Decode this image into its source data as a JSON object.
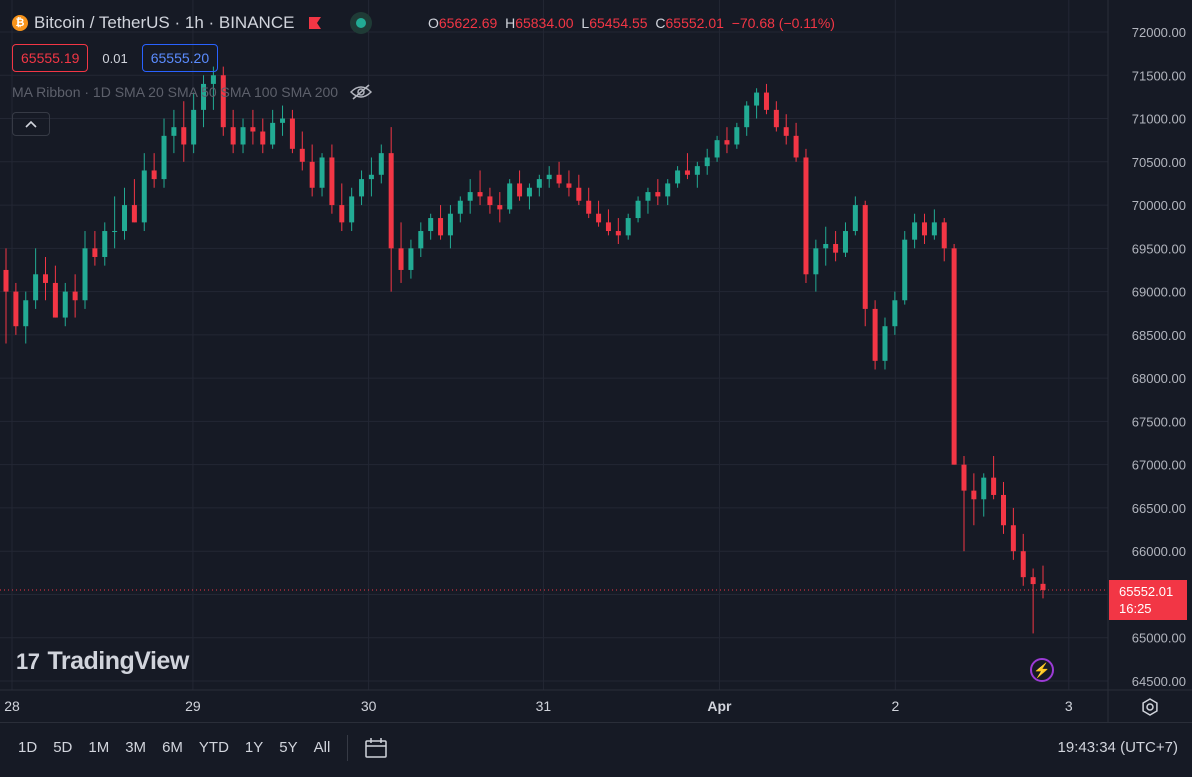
{
  "header": {
    "coin_icon_letter": "₿",
    "title": "Bitcoin / TetherUS · 1h · BINANCE",
    "ohlc": {
      "o_label": "O",
      "o": "65622.69",
      "h_label": "H",
      "h": "65834.00",
      "l_label": "L",
      "l": "65454.55",
      "c_label": "C",
      "c": "65552.01",
      "change": "−70.68 (−0.11%)"
    },
    "bid": "65555.19",
    "spread": "0.01",
    "ask": "65555.20",
    "indicator": "MA Ribbon · 1D SMA 20 SMA 50 SMA 100 SMA 200"
  },
  "last_price": {
    "price": "65552.01",
    "countdown": "16:25"
  },
  "logo": {
    "mark": "17",
    "text": "TradingView"
  },
  "toolbar": {
    "ranges": [
      "1D",
      "5D",
      "1M",
      "3M",
      "6M",
      "YTD",
      "1Y",
      "5Y",
      "All"
    ],
    "clock": "19:43:34 (UTC+7)"
  },
  "colors": {
    "up": "#22ab94",
    "down": "#f23645",
    "grid": "#232734",
    "axis_text": "#b2b5be",
    "background": "#161a25"
  },
  "icons": [
    "bitcoin-icon",
    "flag-icon",
    "market-status-icon",
    "eye-off-icon",
    "chevron-up-icon",
    "bolt-icon",
    "settings-icon",
    "calendar-icon"
  ],
  "chart_data": {
    "type": "candlestick",
    "ylim": [
      64500,
      72000
    ],
    "y_ticks": [
      "72000.00",
      "71500.00",
      "71000.00",
      "70500.00",
      "70000.00",
      "69500.00",
      "69000.00",
      "68500.00",
      "68000.00",
      "67500.00",
      "67000.00",
      "66500.00",
      "66000.00",
      "65500.00",
      "65000.00",
      "64500.00"
    ],
    "x_ticks": [
      "28",
      "29",
      "30",
      "31",
      "Apr",
      "2",
      "3"
    ],
    "last_price_line": 65552.01,
    "candles": [
      [
        69250,
        69500,
        68400,
        69000
      ],
      [
        69000,
        69100,
        68500,
        68600
      ],
      [
        68600,
        69000,
        68400,
        68900
      ],
      [
        68900,
        69500,
        68800,
        69200
      ],
      [
        69200,
        69400,
        68900,
        69100
      ],
      [
        69100,
        69300,
        68700,
        68700
      ],
      [
        68700,
        69100,
        68600,
        69000
      ],
      [
        69000,
        69200,
        68700,
        68900
      ],
      [
        68900,
        69700,
        68800,
        69500
      ],
      [
        69500,
        69700,
        69300,
        69400
      ],
      [
        69400,
        69800,
        69300,
        69700
      ],
      [
        69700,
        70100,
        69500,
        69700
      ],
      [
        69700,
        70200,
        69600,
        70000
      ],
      [
        70000,
        70300,
        69800,
        69800
      ],
      [
        69800,
        70600,
        69700,
        70400
      ],
      [
        70400,
        70600,
        70200,
        70300
      ],
      [
        70300,
        71000,
        70200,
        70800
      ],
      [
        70800,
        71100,
        70600,
        70900
      ],
      [
        70900,
        71200,
        70500,
        70700
      ],
      [
        70700,
        71300,
        70600,
        71100
      ],
      [
        71100,
        71500,
        70900,
        71400
      ],
      [
        71400,
        71600,
        71100,
        71500
      ],
      [
        71500,
        71600,
        70800,
        70900
      ],
      [
        70900,
        71100,
        70600,
        70700
      ],
      [
        70700,
        71000,
        70600,
        70900
      ],
      [
        70900,
        71100,
        70700,
        70850
      ],
      [
        70850,
        71000,
        70600,
        70700
      ],
      [
        70700,
        71100,
        70650,
        70950
      ],
      [
        70950,
        71150,
        70800,
        71000
      ],
      [
        71000,
        71100,
        70600,
        70650
      ],
      [
        70650,
        70850,
        70400,
        70500
      ],
      [
        70500,
        70700,
        70100,
        70200
      ],
      [
        70200,
        70600,
        70100,
        70550
      ],
      [
        70550,
        70700,
        69900,
        70000
      ],
      [
        70000,
        70250,
        69700,
        69800
      ],
      [
        69800,
        70200,
        69700,
        70100
      ],
      [
        70100,
        70400,
        70000,
        70300
      ],
      [
        70300,
        70550,
        70100,
        70350
      ],
      [
        70350,
        70700,
        70250,
        70600
      ],
      [
        70600,
        70900,
        69000,
        69500
      ],
      [
        69500,
        69800,
        69100,
        69250
      ],
      [
        69250,
        69600,
        69150,
        69500
      ],
      [
        69500,
        69800,
        69400,
        69700
      ],
      [
        69700,
        69900,
        69600,
        69850
      ],
      [
        69850,
        70000,
        69600,
        69650
      ],
      [
        69650,
        70000,
        69500,
        69900
      ],
      [
        69900,
        70100,
        69800,
        70050
      ],
      [
        70050,
        70300,
        69900,
        70150
      ],
      [
        70150,
        70400,
        70000,
        70100
      ],
      [
        70100,
        70200,
        69900,
        70000
      ],
      [
        70000,
        70150,
        69800,
        69950
      ],
      [
        69950,
        70300,
        69900,
        70250
      ],
      [
        70250,
        70400,
        70050,
        70100
      ],
      [
        70100,
        70250,
        69950,
        70200
      ],
      [
        70200,
        70350,
        70100,
        70300
      ],
      [
        70300,
        70450,
        70200,
        70350
      ],
      [
        70350,
        70500,
        70200,
        70250
      ],
      [
        70250,
        70400,
        70100,
        70200
      ],
      [
        70200,
        70350,
        70000,
        70050
      ],
      [
        70050,
        70200,
        69850,
        69900
      ],
      [
        69900,
        70050,
        69750,
        69800
      ],
      [
        69800,
        69950,
        69650,
        69700
      ],
      [
        69700,
        69850,
        69550,
        69650
      ],
      [
        69650,
        69900,
        69600,
        69850
      ],
      [
        69850,
        70100,
        69800,
        70050
      ],
      [
        70050,
        70200,
        69900,
        70150
      ],
      [
        70150,
        70300,
        70000,
        70100
      ],
      [
        70100,
        70300,
        70000,
        70250
      ],
      [
        70250,
        70450,
        70200,
        70400
      ],
      [
        70400,
        70600,
        70300,
        70350
      ],
      [
        70350,
        70500,
        70200,
        70450
      ],
      [
        70450,
        70650,
        70350,
        70550
      ],
      [
        70550,
        70800,
        70500,
        70750
      ],
      [
        70750,
        70900,
        70600,
        70700
      ],
      [
        70700,
        70950,
        70650,
        70900
      ],
      [
        70900,
        71200,
        70800,
        71150
      ],
      [
        71150,
        71350,
        71000,
        71300
      ],
      [
        71300,
        71400,
        71050,
        71100
      ],
      [
        71100,
        71200,
        70850,
        70900
      ],
      [
        70900,
        71050,
        70700,
        70800
      ],
      [
        70800,
        70950,
        70500,
        70550
      ],
      [
        70550,
        70650,
        69100,
        69200
      ],
      [
        69200,
        69600,
        69000,
        69500
      ],
      [
        69500,
        69750,
        69300,
        69550
      ],
      [
        69550,
        69700,
        69350,
        69450
      ],
      [
        69450,
        69800,
        69400,
        69700
      ],
      [
        69700,
        70100,
        69650,
        70000
      ],
      [
        70000,
        70050,
        68600,
        68800
      ],
      [
        68800,
        68900,
        68100,
        68200
      ],
      [
        68200,
        68700,
        68100,
        68600
      ],
      [
        68600,
        69000,
        68500,
        68900
      ],
      [
        68900,
        69700,
        68850,
        69600
      ],
      [
        69600,
        69900,
        69500,
        69800
      ],
      [
        69800,
        69900,
        69550,
        69650
      ],
      [
        69650,
        69950,
        69600,
        69800
      ],
      [
        69800,
        69850,
        69350,
        69500
      ],
      [
        69500,
        69550,
        67000,
        67000
      ],
      [
        67000,
        67100,
        66000,
        66700
      ],
      [
        66700,
        66900,
        66300,
        66600
      ],
      [
        66600,
        66900,
        66400,
        66850
      ],
      [
        66850,
        67100,
        66600,
        66650
      ],
      [
        66650,
        66800,
        66200,
        66300
      ],
      [
        66300,
        66500,
        65900,
        66000
      ],
      [
        66000,
        66200,
        65600,
        65700
      ],
      [
        65700,
        65800,
        65050,
        65620
      ],
      [
        65622.69,
        65834,
        65454.55,
        65552.01
      ]
    ]
  }
}
